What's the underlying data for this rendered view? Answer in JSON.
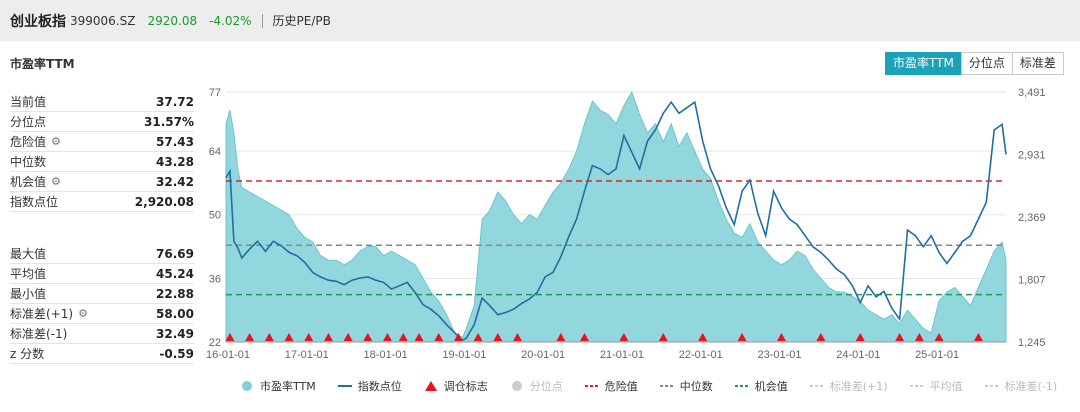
{
  "header": {
    "name": "创业板指",
    "code": "399006.SZ",
    "price": "2920.08",
    "change": "-4.02%",
    "history_link": "历史PE/PB"
  },
  "panel_title": "市盈率TTM",
  "tabs": [
    {
      "label": "市盈率TTM",
      "active": true
    },
    {
      "label": "分位点",
      "active": false
    },
    {
      "label": "标准差",
      "active": false
    }
  ],
  "stats_top": [
    {
      "label": "当前值",
      "value": "37.72",
      "gear": false
    },
    {
      "label": "分位点",
      "value": "31.57%",
      "gear": false
    },
    {
      "label": "危险值",
      "value": "57.43",
      "gear": true
    },
    {
      "label": "中位数",
      "value": "43.28",
      "gear": false
    },
    {
      "label": "机会值",
      "value": "32.42",
      "gear": true
    },
    {
      "label": "指数点位",
      "value": "2,920.08",
      "gear": false
    }
  ],
  "stats_bottom": [
    {
      "label": "最大值",
      "value": "76.69",
      "gear": false
    },
    {
      "label": "平均值",
      "value": "45.24",
      "gear": false
    },
    {
      "label": "最小值",
      "value": "22.88",
      "gear": false
    },
    {
      "label": "标准差(+1)",
      "value": "58.00",
      "gear": true
    },
    {
      "label": "标准差(-1)",
      "value": "32.49",
      "gear": false
    },
    {
      "label": "z 分数",
      "value": "-0.59",
      "gear": false
    }
  ],
  "legend": [
    {
      "label": "市盈率TTM",
      "symbol": "dot",
      "color": "#7fd0d8",
      "active": true
    },
    {
      "label": "指数点位",
      "symbol": "line",
      "color": "#1f6fa0",
      "active": true
    },
    {
      "label": "调仓标志",
      "symbol": "triangle",
      "color": "#e8141a",
      "active": true
    },
    {
      "label": "分位点",
      "symbol": "dot",
      "color": "#cccccc",
      "active": false
    },
    {
      "label": "危险值",
      "symbol": "dash",
      "color": "#d9262b",
      "active": true
    },
    {
      "label": "中位数",
      "symbol": "dash",
      "color": "#888888",
      "active": true
    },
    {
      "label": "机会值",
      "symbol": "dash",
      "color": "#1e9a55",
      "active": true
    },
    {
      "label": "标准差(+1)",
      "symbol": "dash",
      "color": "#cccccc",
      "active": false
    },
    {
      "label": "平均值",
      "symbol": "dash",
      "color": "#cccccc",
      "active": false
    },
    {
      "label": "标准差(-1)",
      "symbol": "dash",
      "color": "#cccccc",
      "active": false
    }
  ],
  "chart_data": {
    "type": "area",
    "x_ticks": [
      "16-01-01",
      "17-01-01",
      "18-01-01",
      "19-01-01",
      "20-01-01",
      "21-01-01",
      "22-01-01",
      "23-01-01",
      "24-01-01",
      "25-01-01"
    ],
    "x_range": [
      2016.0,
      2025.9
    ],
    "left_axis": {
      "ticks": [
        22,
        36,
        50,
        64,
        77
      ],
      "range": [
        22,
        77
      ]
    },
    "right_axis": {
      "ticks": [
        "1,245",
        "1,807",
        "2,369",
        "2,931",
        "3,491"
      ],
      "range": [
        1245,
        3491
      ]
    },
    "reference_lines": {
      "danger": 57.43,
      "median": 43.28,
      "opportunity": 32.42
    },
    "pe_series": {
      "name": "市盈率TTM",
      "color": "#7fd0d8",
      "x": [
        2016.0,
        2016.05,
        2016.1,
        2016.15,
        2016.2,
        2016.3,
        2016.4,
        2016.5,
        2016.6,
        2016.7,
        2016.8,
        2016.9,
        2017.0,
        2017.1,
        2017.2,
        2017.3,
        2017.4,
        2017.5,
        2017.6,
        2017.7,
        2017.8,
        2017.9,
        2018.0,
        2018.1,
        2018.2,
        2018.3,
        2018.4,
        2018.5,
        2018.6,
        2018.7,
        2018.8,
        2018.9,
        2019.0,
        2019.05,
        2019.15,
        2019.25,
        2019.35,
        2019.45,
        2019.55,
        2019.65,
        2019.75,
        2019.85,
        2019.95,
        2020.05,
        2020.15,
        2020.25,
        2020.35,
        2020.45,
        2020.55,
        2020.65,
        2020.75,
        2020.85,
        2020.95,
        2021.05,
        2021.15,
        2021.25,
        2021.35,
        2021.45,
        2021.55,
        2021.65,
        2021.75,
        2021.85,
        2021.95,
        2022.05,
        2022.15,
        2022.25,
        2022.35,
        2022.45,
        2022.55,
        2022.65,
        2022.75,
        2022.85,
        2022.95,
        2023.05,
        2023.15,
        2023.25,
        2023.35,
        2023.45,
        2023.55,
        2023.65,
        2023.75,
        2023.85,
        2023.95,
        2024.05,
        2024.15,
        2024.25,
        2024.35,
        2024.45,
        2024.55,
        2024.65,
        2024.75,
        2024.85,
        2024.95,
        2025.05,
        2025.15,
        2025.25,
        2025.35,
        2025.45,
        2025.55,
        2025.65,
        2025.75,
        2025.85,
        2025.9
      ],
      "y": [
        70,
        73,
        68,
        60,
        56,
        55,
        54,
        53,
        52,
        51,
        50,
        47,
        45,
        44,
        41,
        40,
        40,
        39,
        40,
        42,
        43,
        43,
        41,
        42,
        41,
        40,
        39,
        36,
        33,
        31,
        28,
        24,
        23,
        25,
        30,
        49,
        51,
        55,
        53,
        50,
        48,
        50,
        49,
        52,
        55,
        57,
        60,
        64,
        70,
        75,
        73,
        72,
        70,
        74,
        77,
        72,
        68,
        70,
        66,
        70,
        65,
        68,
        64,
        60,
        58,
        53,
        49,
        46,
        45,
        48,
        44,
        42,
        40,
        39,
        40,
        42,
        41,
        38,
        36,
        34,
        33,
        33,
        32,
        31,
        29,
        28,
        27,
        28,
        26,
        29,
        27,
        25,
        24,
        31,
        33,
        34,
        32,
        30,
        34,
        38,
        42,
        44,
        40
      ]
    },
    "index_series": {
      "name": "指数点位",
      "color": "#1f6fa0",
      "x": [
        2016.0,
        2016.05,
        2016.1,
        2016.15,
        2016.2,
        2016.3,
        2016.4,
        2016.5,
        2016.6,
        2016.7,
        2016.8,
        2016.9,
        2017.0,
        2017.1,
        2017.2,
        2017.3,
        2017.4,
        2017.5,
        2017.6,
        2017.7,
        2017.8,
        2017.9,
        2018.0,
        2018.1,
        2018.2,
        2018.3,
        2018.4,
        2018.5,
        2018.6,
        2018.7,
        2018.8,
        2018.9,
        2019.0,
        2019.05,
        2019.15,
        2019.25,
        2019.35,
        2019.45,
        2019.55,
        2019.65,
        2019.75,
        2019.85,
        2019.95,
        2020.05,
        2020.15,
        2020.25,
        2020.35,
        2020.45,
        2020.55,
        2020.65,
        2020.75,
        2020.85,
        2020.95,
        2021.05,
        2021.15,
        2021.25,
        2021.35,
        2021.45,
        2021.55,
        2021.65,
        2021.75,
        2021.85,
        2021.95,
        2022.05,
        2022.15,
        2022.25,
        2022.35,
        2022.45,
        2022.55,
        2022.65,
        2022.75,
        2022.85,
        2022.95,
        2023.05,
        2023.15,
        2023.25,
        2023.35,
        2023.45,
        2023.55,
        2023.65,
        2023.75,
        2023.85,
        2023.95,
        2024.05,
        2024.15,
        2024.25,
        2024.35,
        2024.45,
        2024.55,
        2024.65,
        2024.75,
        2024.85,
        2024.95,
        2025.05,
        2025.15,
        2025.25,
        2025.35,
        2025.45,
        2025.55,
        2025.65,
        2025.75,
        2025.85,
        2025.9
      ],
      "y": [
        2720,
        2780,
        2150,
        2090,
        2000,
        2080,
        2150,
        2060,
        2150,
        2110,
        2050,
        2020,
        1960,
        1870,
        1830,
        1800,
        1790,
        1760,
        1800,
        1820,
        1830,
        1800,
        1780,
        1720,
        1750,
        1780,
        1690,
        1580,
        1540,
        1480,
        1400,
        1330,
        1260,
        1280,
        1400,
        1640,
        1570,
        1490,
        1510,
        1540,
        1590,
        1630,
        1690,
        1830,
        1870,
        2010,
        2190,
        2350,
        2600,
        2830,
        2800,
        2750,
        2800,
        3100,
        2950,
        2800,
        3050,
        3150,
        3300,
        3400,
        3300,
        3350,
        3400,
        3050,
        2800,
        2650,
        2450,
        2300,
        2600,
        2700,
        2400,
        2200,
        2600,
        2450,
        2350,
        2300,
        2200,
        2100,
        2050,
        1980,
        1900,
        1850,
        1750,
        1600,
        1750,
        1650,
        1700,
        1550,
        1450,
        2250,
        2200,
        2100,
        2200,
        2050,
        1950,
        2050,
        2150,
        2200,
        2350,
        2500,
        3150,
        3200,
        2931
      ]
    },
    "rebalance_markers": [
      2016.05,
      2016.3,
      2016.55,
      2016.8,
      2017.05,
      2017.3,
      2017.55,
      2017.8,
      2018.05,
      2018.25,
      2018.45,
      2018.7,
      2018.95,
      2019.2,
      2019.45,
      2019.7,
      2020.25,
      2020.55,
      2021.05,
      2021.55,
      2022.05,
      2022.55,
      2023.05,
      2023.55,
      2024.05,
      2024.55,
      2024.8,
      2025.05,
      2025.55
    ]
  }
}
